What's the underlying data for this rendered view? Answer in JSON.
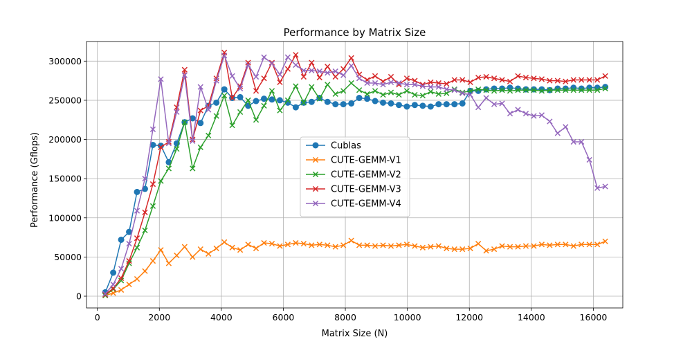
{
  "chart_data": {
    "type": "line",
    "title": "Performance by Matrix Size",
    "xlabel": "Matrix Size (N)",
    "ylabel": "Performance (Gflops)",
    "xlim": [
      -350,
      16950
    ],
    "ylim": [
      -15000,
      325000
    ],
    "xticks": [
      0,
      2000,
      4000,
      6000,
      8000,
      10000,
      12000,
      14000,
      16000
    ],
    "yticks": [
      0,
      50000,
      100000,
      150000,
      200000,
      250000,
      300000
    ],
    "grid": true,
    "legend_position": "center",
    "x": [
      256,
      512,
      768,
      1024,
      1280,
      1536,
      1792,
      2048,
      2304,
      2560,
      2816,
      3072,
      3328,
      3584,
      3840,
      4096,
      4352,
      4608,
      4864,
      5120,
      5376,
      5632,
      5888,
      6144,
      6400,
      6656,
      6912,
      7168,
      7424,
      7680,
      7936,
      8192,
      8448,
      8704,
      8960,
      9216,
      9472,
      9728,
      9984,
      10240,
      10496,
      10752,
      11008,
      11264,
      11520,
      11776,
      12032,
      12288,
      12544,
      12800,
      13056,
      13312,
      13568,
      13824,
      14080,
      14336,
      14592,
      14848,
      15104,
      15360,
      15616,
      15872,
      16128,
      16384
    ],
    "series": [
      {
        "name": "Cublas",
        "color": "#1f77b4",
        "marker": "circle",
        "values": [
          5000,
          30000,
          72000,
          82000,
          133000,
          137000,
          193000,
          192000,
          171000,
          195000,
          222000,
          227000,
          221000,
          243000,
          247000,
          264000,
          253000,
          254000,
          243000,
          249000,
          252000,
          251000,
          250000,
          247000,
          241000,
          247000,
          248000,
          253000,
          248000,
          245000,
          245000,
          246000,
          253000,
          252000,
          249000,
          247000,
          246000,
          244000,
          242000,
          244000,
          243000,
          242000,
          245000,
          245000,
          245000,
          246000,
          262000,
          262000,
          264000,
          265000,
          265000,
          266000,
          265000,
          264000,
          264000,
          264000,
          263000,
          265000,
          265000,
          266000,
          265000,
          266000,
          266000,
          267000
        ]
      },
      {
        "name": "CUTE-GEMM-V1",
        "color": "#ff7f0e",
        "marker": "x",
        "values": [
          1000,
          4000,
          8000,
          15000,
          22000,
          32000,
          45000,
          59000,
          42000,
          52000,
          63000,
          50000,
          60000,
          54000,
          61000,
          69000,
          62000,
          59000,
          66000,
          61000,
          68000,
          67000,
          64000,
          66000,
          68000,
          67000,
          65000,
          66000,
          65000,
          63000,
          65000,
          71000,
          65000,
          65000,
          64000,
          65000,
          64000,
          65000,
          66000,
          64000,
          62000,
          63000,
          64000,
          61000,
          60000,
          60000,
          61000,
          67000,
          58000,
          60000,
          64000,
          63000,
          63000,
          64000,
          64000,
          66000,
          65000,
          66000,
          66000,
          64000,
          66000,
          66000,
          66000,
          70000
        ]
      },
      {
        "name": "CUTE-GEMM-V2",
        "color": "#2ca02c",
        "marker": "x",
        "values": [
          1000,
          9000,
          20000,
          42000,
          62000,
          84000,
          115000,
          147000,
          163000,
          188000,
          222000,
          163000,
          190000,
          205000,
          230000,
          256000,
          218000,
          235000,
          250000,
          225000,
          243000,
          262000,
          237000,
          250000,
          268000,
          247000,
          267000,
          252000,
          270000,
          258000,
          262000,
          272000,
          263000,
          258000,
          262000,
          257000,
          260000,
          257000,
          262000,
          257000,
          256000,
          261000,
          258000,
          259000,
          264000,
          260000,
          262000,
          264000,
          263000,
          262000,
          263000,
          262000,
          263000,
          263000,
          263000,
          262000,
          263000,
          263000,
          263000,
          263000,
          263000,
          263000,
          263000,
          265000
        ]
      },
      {
        "name": "CUTE-GEMM-V3",
        "color": "#d62728",
        "marker": "x",
        "values": [
          2000,
          10000,
          23000,
          45000,
          74000,
          107000,
          143000,
          190000,
          197000,
          241000,
          289000,
          200000,
          237000,
          243000,
          278000,
          311000,
          253000,
          268000,
          298000,
          262000,
          278000,
          298000,
          273000,
          290000,
          308000,
          280000,
          298000,
          279000,
          293000,
          280000,
          290000,
          304000,
          283000,
          276000,
          281000,
          274000,
          280000,
          270000,
          278000,
          275000,
          270000,
          273000,
          272000,
          271000,
          276000,
          276000,
          273000,
          279000,
          280000,
          278000,
          276000,
          274000,
          281000,
          279000,
          278000,
          277000,
          275000,
          275000,
          274000,
          276000,
          276000,
          276000,
          276000,
          281000
        ]
      },
      {
        "name": "CUTE-GEMM-V4",
        "color": "#9467bd",
        "marker": "x",
        "values": [
          3000,
          15000,
          35000,
          67000,
          109000,
          150000,
          213000,
          277000,
          195000,
          235000,
          282000,
          198000,
          267000,
          238000,
          275000,
          307000,
          281000,
          265000,
          295000,
          280000,
          305000,
          297000,
          283000,
          305000,
          295000,
          288000,
          288000,
          287000,
          285000,
          287000,
          282000,
          294000,
          278000,
          272000,
          272000,
          270000,
          273000,
          272000,
          270000,
          270000,
          268000,
          267000,
          267000,
          264000,
          263000,
          259000,
          257000,
          241000,
          253000,
          245000,
          246000,
          233000,
          238000,
          233000,
          230000,
          231000,
          223000,
          208000,
          216000,
          197000,
          197000,
          174000,
          138000,
          140000
        ]
      }
    ]
  }
}
